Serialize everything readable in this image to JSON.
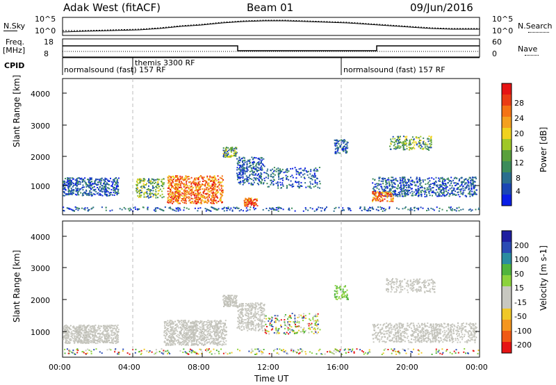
{
  "header": {
    "title": "Adak West (fitACF)",
    "beam": "Beam 01",
    "date": "09/Jun/2016"
  },
  "top_panel": {
    "left_label_1": "N.Sky",
    "left_ticks_1": [
      "10^5",
      "10^0"
    ],
    "right_label_1": "N.Search",
    "right_ticks_1": [
      "10^5",
      "10^0"
    ],
    "left_label_2_line1": "Freq.",
    "left_label_2_line2": "[MHz]",
    "left_ticks_2": [
      "18",
      "8"
    ],
    "right_label_2": "Nave",
    "right_ticks_2": [
      "60",
      "0"
    ],
    "cpid_label": "CPID",
    "cpid_entries": [
      {
        "text": "normalsound (fast) 157 RF"
      },
      {
        "text": "themis 3300 RF"
      },
      {
        "text": "normalsound (fast) 157 RF"
      }
    ]
  },
  "chart_data": [
    {
      "type": "heatmap",
      "name": "power",
      "ylabel": "Slant Range [km]",
      "yticks": [
        "1000",
        "2000",
        "3000",
        "4000"
      ],
      "ylim": [
        180,
        4590
      ],
      "colorbar_label": "Power [dB]",
      "colorbar_ticks": [
        "4",
        "8",
        "12",
        "16",
        "20",
        "24",
        "28"
      ],
      "colorbar_colors": [
        "#0a1ee6",
        "#1a46b4",
        "#2a6e8e",
        "#3c8c5a",
        "#5aa03c",
        "#a0c828",
        "#f0d21e",
        "#f5a01e",
        "#f57314",
        "#eb3c14",
        "#e61414"
      ]
    },
    {
      "type": "heatmap",
      "name": "velocity",
      "ylabel": "Slant Range [km]",
      "yticks": [
        "1000",
        "2000",
        "3000",
        "4000"
      ],
      "ylim": [
        180,
        4590
      ],
      "xlabel": "Time UT",
      "xticks": [
        "00:00",
        "04:00",
        "08:00",
        "12:00",
        "16:00",
        "20:00",
        "00:00"
      ],
      "colorbar_label": "Velocity [m s-1]",
      "colorbar_ticks": [
        "200",
        "100",
        "50",
        "15",
        "-15",
        "-50",
        "-100",
        "-200"
      ],
      "colorbar_colors": [
        "#1e1ea0",
        "#2a4bb4",
        "#2a8ca0",
        "#50b43c",
        "#8cd23c",
        "#c8c8c0",
        "#c8c8c0",
        "#f0c828",
        "#f5961e",
        "#f05a14",
        "#e61414"
      ]
    }
  ]
}
